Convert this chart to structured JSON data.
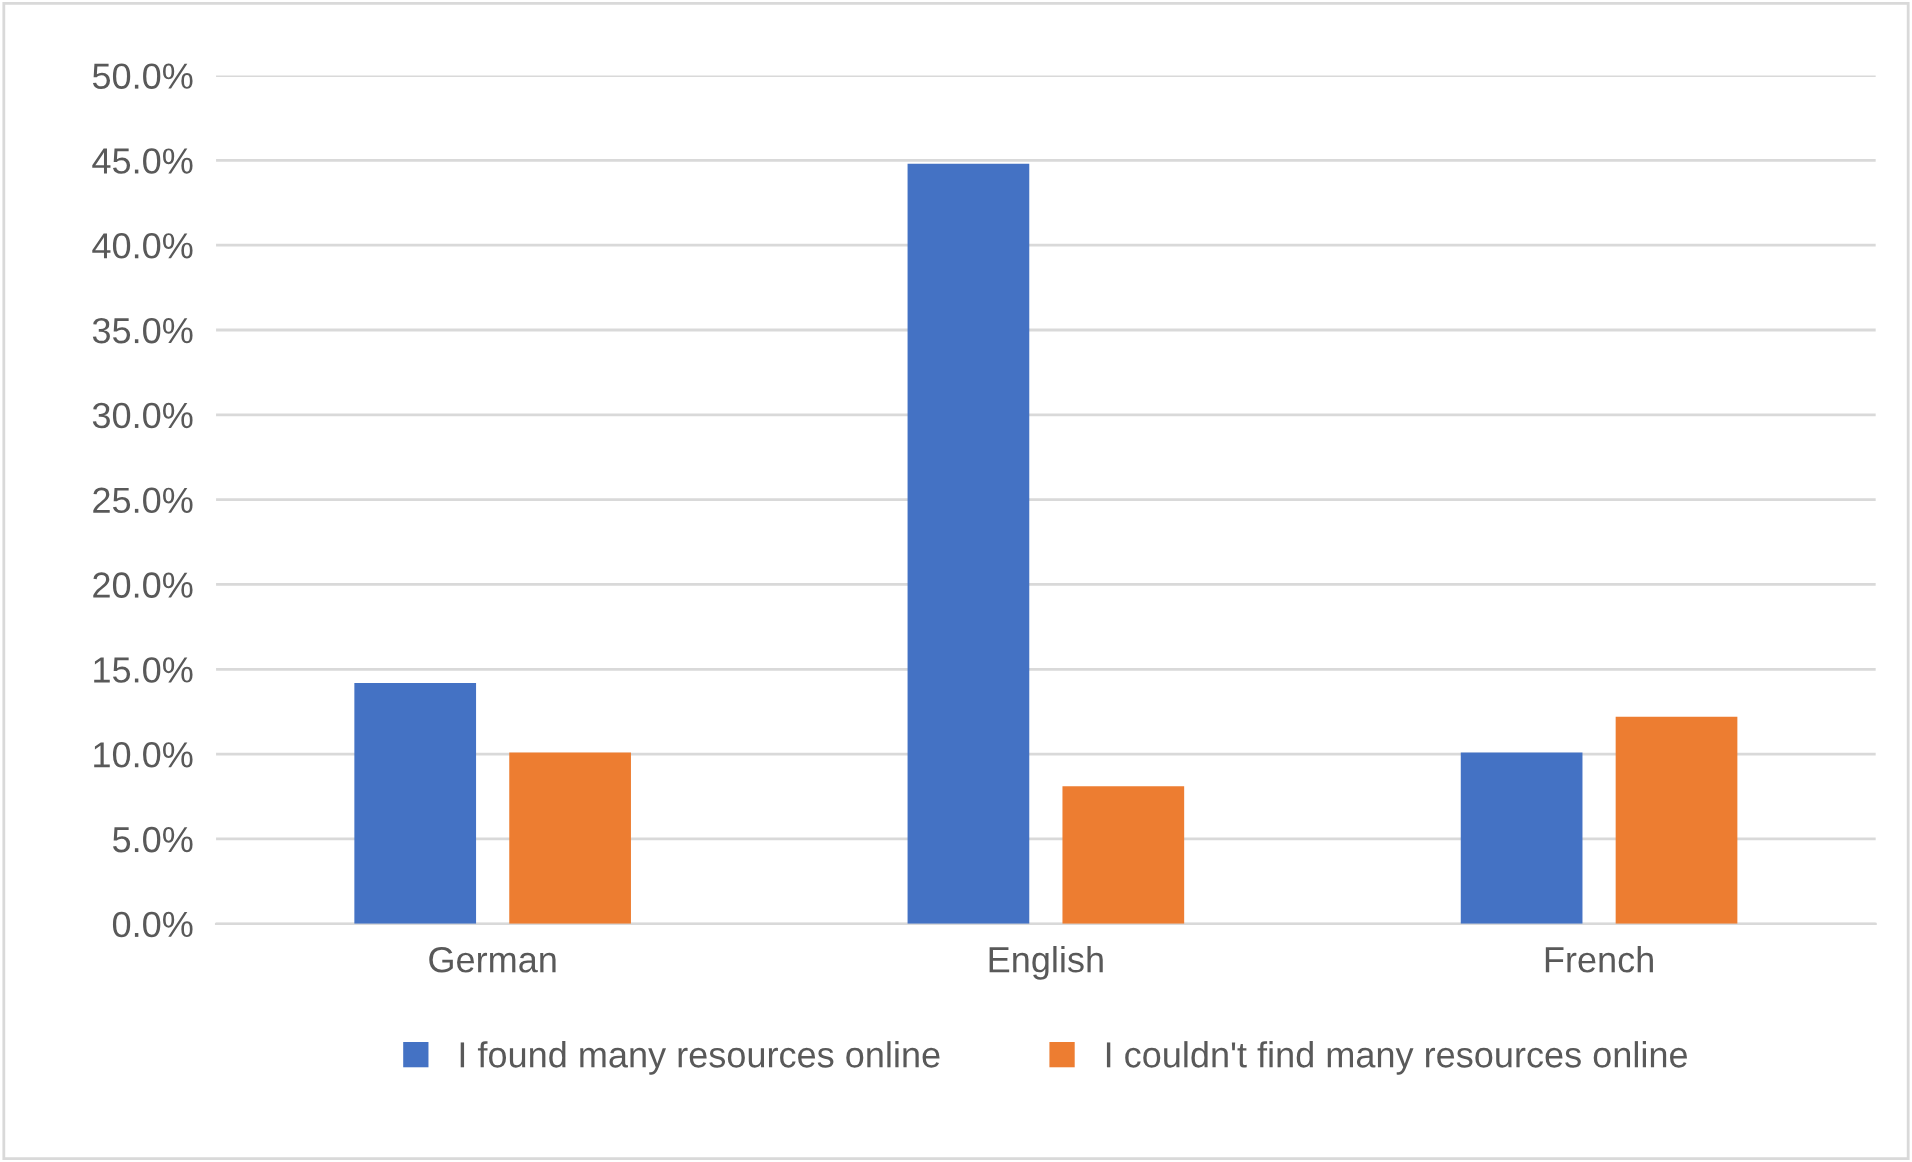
{
  "chart_data": {
    "type": "bar",
    "categories": [
      "German",
      "English",
      "French"
    ],
    "series": [
      {
        "name": "I found many resources online",
        "color": "#4472c4",
        "values": [
          14.2,
          44.8,
          10.1
        ]
      },
      {
        "name": "I couldn't find many resources online",
        "color": "#ed7d31",
        "values": [
          10.1,
          8.1,
          12.2
        ]
      }
    ],
    "ylim": [
      0,
      50
    ],
    "yticks": [
      {
        "value": 0,
        "label": "0.0%"
      },
      {
        "value": 5,
        "label": "5.0%"
      },
      {
        "value": 10,
        "label": "10.0%"
      },
      {
        "value": 15,
        "label": "15.0%"
      },
      {
        "value": 20,
        "label": "20.0%"
      },
      {
        "value": 25,
        "label": "25.0%"
      },
      {
        "value": 30,
        "label": "30.0%"
      },
      {
        "value": 35,
        "label": "35.0%"
      },
      {
        "value": 40,
        "label": "40.0%"
      },
      {
        "value": 45,
        "label": "45.0%"
      },
      {
        "value": 50,
        "label": "50.0%"
      }
    ],
    "grid": "y",
    "legend": "bottom"
  }
}
